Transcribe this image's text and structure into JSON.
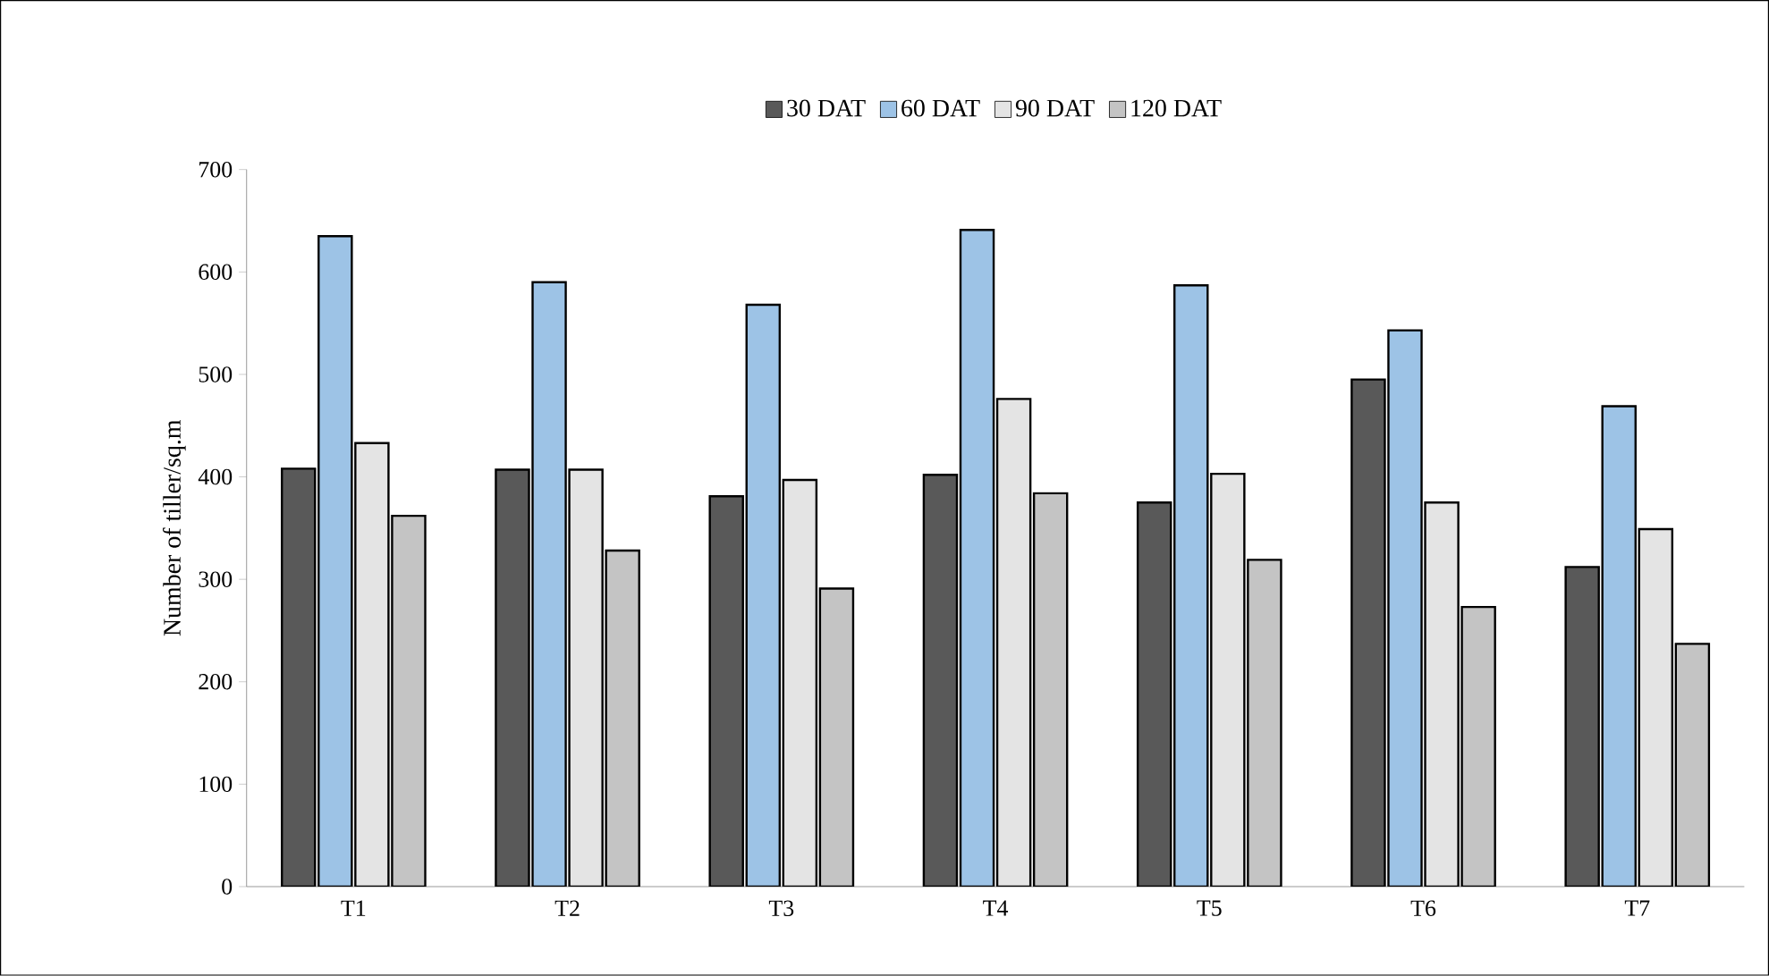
{
  "chart_data": {
    "type": "bar",
    "ylabel": "Number of tiller/sq.m",
    "categories": [
      "T1",
      "T2",
      "T3",
      "T4",
      "T5",
      "T6",
      "T7"
    ],
    "series": [
      {
        "name": "30 DAT",
        "color": "#595959",
        "values": [
          408,
          407,
          381,
          402,
          375,
          495,
          312
        ]
      },
      {
        "name": "60 DAT",
        "color": "#9dc3e6",
        "values": [
          635,
          590,
          568,
          641,
          587,
          543,
          469
        ]
      },
      {
        "name": "90 DAT",
        "color": "#e4e4e4",
        "values": [
          433,
          407,
          397,
          476,
          403,
          375,
          349
        ]
      },
      {
        "name": "120 DAT",
        "color": "#c4c4c4",
        "values": [
          362,
          328,
          291,
          384,
          319,
          273,
          237
        ]
      }
    ],
    "ylim": [
      0,
      700
    ],
    "yticks": [
      0,
      100,
      200,
      300,
      400,
      500,
      600,
      700
    ],
    "grid": false,
    "legend": "top"
  }
}
